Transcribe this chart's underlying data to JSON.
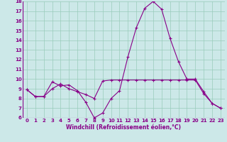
{
  "xlabel": "Windchill (Refroidissement éolien,°C)",
  "bg_color": "#cce8e8",
  "line_color": "#880088",
  "grid_color": "#99ccbb",
  "series1_x": [
    0,
    1,
    2,
    3,
    4,
    5,
    6,
    7,
    8,
    9,
    10,
    11,
    12,
    13,
    14,
    15,
    16,
    17,
    18,
    19,
    20,
    21,
    22,
    23
  ],
  "series1_y": [
    8.9,
    8.2,
    8.2,
    9.7,
    9.3,
    9.4,
    8.8,
    7.6,
    6.0,
    6.5,
    8.0,
    8.8,
    12.3,
    15.3,
    17.3,
    18.0,
    17.2,
    14.2,
    11.8,
    10.0,
    10.0,
    8.7,
    7.5,
    7.0
  ],
  "series2_x": [
    0,
    1,
    2,
    3,
    4,
    5,
    6,
    7,
    8,
    9,
    10,
    11,
    12,
    13,
    14,
    15,
    16,
    17,
    18,
    19,
    20,
    21,
    22,
    23
  ],
  "series2_y": [
    8.9,
    8.2,
    8.2,
    9.0,
    9.5,
    9.0,
    8.7,
    8.4,
    8.0,
    9.8,
    9.9,
    9.9,
    9.9,
    9.9,
    9.9,
    9.9,
    9.9,
    9.9,
    9.9,
    9.9,
    9.9,
    8.5,
    7.5,
    7.0
  ],
  "xlim": [
    -0.5,
    23.5
  ],
  "ylim": [
    6,
    18
  ],
  "yticks": [
    6,
    7,
    8,
    9,
    10,
    11,
    12,
    13,
    14,
    15,
    16,
    17,
    18
  ],
  "xticks": [
    0,
    1,
    2,
    3,
    4,
    5,
    6,
    7,
    8,
    9,
    10,
    11,
    12,
    13,
    14,
    15,
    16,
    17,
    18,
    19,
    20,
    21,
    22,
    23
  ],
  "marker": "+",
  "marker_size": 3.5,
  "line_width": 0.8,
  "tick_fontsize": 5.0,
  "xlabel_fontsize": 5.5
}
